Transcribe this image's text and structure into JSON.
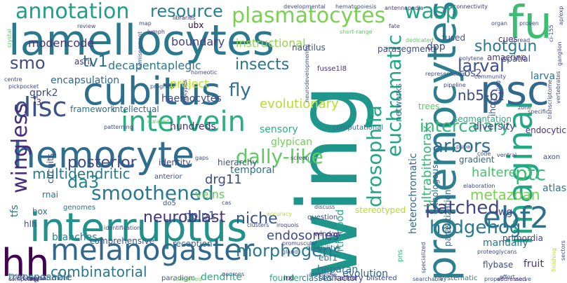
{
  "words": [
    {
      "text": "wing",
      "color": "#1f968b"
    },
    {
      "text": "prohemocytes",
      "color": "#2c7f8e"
    },
    {
      "text": "lamellocytes",
      "color": "#2a788e"
    },
    {
      "text": "interruptus",
      "color": "#21918c"
    },
    {
      "text": "hemocyte",
      "color": "#2f6c8e"
    },
    {
      "text": "cubitus",
      "color": "#2d708e"
    },
    {
      "text": "imaginal",
      "color": "#22a884"
    },
    {
      "text": "fu",
      "color": "#3fbc73"
    },
    {
      "text": "psc",
      "color": "#31688e"
    },
    {
      "text": "hh",
      "color": "#440154"
    },
    {
      "text": "melanogaster",
      "color": "#31688e"
    },
    {
      "text": "ebf2",
      "color": "#2d708e"
    },
    {
      "text": "intervein",
      "color": "#29af7f"
    },
    {
      "text": "disc",
      "color": "#3b528b"
    },
    {
      "text": "plasmatocytes",
      "color": "#7ad151"
    },
    {
      "text": "annotation",
      "color": "#1f9e89"
    },
    {
      "text": "resource",
      "color": "#26828e"
    },
    {
      "text": "wasp",
      "color": "#22a884"
    },
    {
      "text": "smo",
      "color": "#3e4989"
    },
    {
      "text": "fly",
      "color": "#2c728e"
    },
    {
      "text": "insects",
      "color": "#2c728e"
    },
    {
      "text": "tv1",
      "color": "#2d708e"
    },
    {
      "text": "smoothened",
      "color": "#2a788e"
    },
    {
      "text": "dally-like",
      "color": "#5ec962"
    },
    {
      "text": "posterior",
      "color": "#3e4989"
    },
    {
      "text": "da3",
      "color": "#26828e"
    },
    {
      "text": "wingless",
      "color": "#472d7b"
    },
    {
      "text": "multidendritic",
      "color": "#2a788e"
    },
    {
      "text": "drosophila",
      "color": "#22a884"
    },
    {
      "text": "euchromatic",
      "color": "#20a486"
    },
    {
      "text": "arbors",
      "color": "#2e6e8e"
    },
    {
      "text": "intercalary",
      "color": "#35b779"
    },
    {
      "text": "ptc",
      "color": "#3fbc73"
    },
    {
      "text": "patched",
      "color": "#414487"
    },
    {
      "text": "hedgehog",
      "color": "#2a788e"
    },
    {
      "text": "neuroblast",
      "color": "#46327e"
    },
    {
      "text": "morphogens",
      "color": "#2a788e"
    },
    {
      "text": "niche",
      "color": "#3b528b"
    },
    {
      "text": "combinatorial",
      "color": "#2a788e"
    },
    {
      "text": "shotgun",
      "color": "#2a788e"
    },
    {
      "text": "larval",
      "color": "#3b528b"
    },
    {
      "text": "nb5-6t",
      "color": "#3e4989"
    },
    {
      "text": "metazoan",
      "color": "#7ad151"
    },
    {
      "text": "ultrabithorax",
      "color": "#35b779"
    },
    {
      "text": "endosomes",
      "color": "#3e4989"
    },
    {
      "text": "haltere",
      "color": "#4ac16d"
    },
    {
      "text": "boundary",
      "color": "#414487"
    },
    {
      "text": "modencode",
      "color": "#46337f"
    },
    {
      "text": "decapentaplegic",
      "color": "#2a788e"
    },
    {
      "text": "encapsulation",
      "color": "#31688e"
    },
    {
      "text": "instructional",
      "color": "#90d743"
    },
    {
      "text": "evolutionary",
      "color": "#b5de2b"
    },
    {
      "text": "haemocytes",
      "color": "#3e4989"
    },
    {
      "text": "hundreds",
      "color": "#46327e"
    },
    {
      "text": "intellectual",
      "color": "#31688e"
    },
    {
      "text": "framework",
      "color": "#2c728e"
    },
    {
      "text": "project",
      "color": "#b5de2b"
    },
    {
      "text": "sensory",
      "color": "#29af7f"
    },
    {
      "text": "drg11",
      "color": "#3e4989"
    },
    {
      "text": "glypican",
      "color": "#6ece58"
    },
    {
      "text": "heterochromatic",
      "color": "#31688e"
    },
    {
      "text": "veins",
      "color": "#5ec962"
    },
    {
      "text": "temporal",
      "color": "#2c728e"
    },
    {
      "text": "nplp1",
      "color": "#3b528b"
    },
    {
      "text": "transposable",
      "color": "#2a788e"
    },
    {
      "text": "branches",
      "color": "#26828e"
    },
    {
      "text": "comprehensive",
      "color": "#3b528b"
    },
    {
      "text": "reception",
      "color": "#31688e"
    },
    {
      "text": "dendrite",
      "color": "#29af7f"
    },
    {
      "text": "heparan",
      "color": "#2c728e"
    },
    {
      "text": "evolution",
      "color": "#31688e"
    },
    {
      "text": "manually",
      "color": "#2c728e"
    },
    {
      "text": "primordia",
      "color": "#3e4989"
    },
    {
      "text": "diversity",
      "color": "#3e4989"
    },
    {
      "text": "wg",
      "color": "#414487"
    },
    {
      "text": "atlas",
      "color": "#2a788e"
    },
    {
      "text": "ebf1",
      "color": "#2a788e"
    },
    {
      "text": "l4olfactory",
      "color": "#3e4989"
    },
    {
      "text": "founder",
      "color": "#29af7f"
    },
    {
      "text": "arthropod",
      "color": "#20a486"
    },
    {
      "text": "parasitization",
      "color": "#31688e"
    },
    {
      "text": "orthologous",
      "color": "#2c728e"
    },
    {
      "text": "gprk2",
      "color": "#3e4989"
    },
    {
      "text": "asrij",
      "color": "#46327e"
    },
    {
      "text": "ubx",
      "color": "#440154"
    },
    {
      "text": "amacrine",
      "color": "#46327e"
    },
    {
      "text": "cues",
      "color": "#46327e"
    },
    {
      "text": "nautilus",
      "color": "#3b528b"
    },
    {
      "text": "cos2",
      "color": "#3e4989"
    },
    {
      "text": "dpp",
      "color": "#3e4989"
    },
    {
      "text": "spatial",
      "color": "#3e4989"
    },
    {
      "text": "larva",
      "color": "#2c728e"
    },
    {
      "text": "ihog",
      "color": "#3b528b"
    },
    {
      "text": "segmentation",
      "color": "#29af7f"
    },
    {
      "text": "endocytic",
      "color": "#46327e"
    },
    {
      "text": "gradient",
      "color": "#31688e"
    },
    {
      "text": "trees",
      "color": "#5ec962"
    },
    {
      "text": "fused",
      "color": "#3b528b"
    },
    {
      "text": "parasegment",
      "color": "#3e4989"
    },
    {
      "text": "networks",
      "color": "#2c728e"
    },
    {
      "text": "computational",
      "color": "#2c728e"
    },
    {
      "text": "identity",
      "color": "#3e4989"
    },
    {
      "text": "hierarchy",
      "color": "#3b528b"
    },
    {
      "text": "classes",
      "color": "#2c728e"
    },
    {
      "text": "stereotyped",
      "color": "#b5de2b"
    },
    {
      "text": "question",
      "color": "#3e4989"
    },
    {
      "text": "disability",
      "color": "#2c728e"
    },
    {
      "text": "pns",
      "color": "#35b779"
    },
    {
      "text": "circuits",
      "color": "#3e4989"
    },
    {
      "text": "fruit",
      "color": "#46327e"
    },
    {
      "text": "flybase",
      "color": "#3e4989"
    },
    {
      "text": "fusse1l8",
      "color": "#46327e"
    },
    {
      "text": "l3",
      "color": "#46327e"
    },
    {
      "text": "tfs",
      "color": "#2c728e"
    },
    {
      "text": "hox",
      "color": "#2c728e"
    },
    {
      "text": "rnai",
      "color": "#2c728e"
    },
    {
      "text": "hlh",
      "color": "#3b528b"
    },
    {
      "text": "genomes",
      "color": "#2c728e"
    },
    {
      "text": "do5",
      "color": "#3b528b"
    },
    {
      "text": "anterior",
      "color": "#3b528b"
    },
    {
      "text": "window",
      "color": "#46327e"
    },
    {
      "text": "irxl",
      "color": "#440154"
    },
    {
      "text": "called",
      "color": "#46327e"
    },
    {
      "text": "blistered",
      "color": "#3e4989"
    },
    {
      "text": "compartment",
      "color": "#31688e"
    },
    {
      "text": "paradigm",
      "color": "#3b528b"
    },
    {
      "text": "conserved",
      "color": "#6ece58"
    },
    {
      "text": "searchable",
      "color": "#3b528b"
    },
    {
      "text": "proper",
      "color": "#3b528b"
    },
    {
      "text": "systematic",
      "color": "#2a788e"
    },
    {
      "text": "nerve",
      "color": "#3b528b"
    },
    {
      "text": "effort",
      "color": "#3b528b"
    },
    {
      "text": "addressed",
      "color": "#46327e"
    },
    {
      "text": "developmental",
      "color": "#3e4989"
    },
    {
      "text": "hematopoiesis",
      "color": "#3b528b"
    },
    {
      "text": "antennapedia",
      "color": "#46327e"
    },
    {
      "text": "neurodevelopmental",
      "color": "#3b528b"
    },
    {
      "text": "short-range",
      "color": "#5ec962"
    },
    {
      "text": "fate",
      "color": "#3e4989"
    },
    {
      "text": "dedicated",
      "color": "#5ec962"
    },
    {
      "text": "connectivity",
      "color": "#46327e"
    },
    {
      "text": "spread",
      "color": "#3b528b"
    },
    {
      "text": "community",
      "color": "#3e4989"
    },
    {
      "text": "polytene",
      "color": "#3e4989"
    },
    {
      "text": "lymph",
      "color": "#46327e"
    },
    {
      "text": "review",
      "color": "#3e4989"
    },
    {
      "text": "libraries",
      "color": "#46327e"
    },
    {
      "text": "crystal",
      "color": "#5ec962"
    },
    {
      "text": "centre",
      "color": "#3e4989"
    },
    {
      "text": "pickpocket",
      "color": "#3e4989"
    },
    {
      "text": "curated",
      "color": "#5ec962"
    },
    {
      "text": "hemisegment",
      "color": "#3b528b"
    },
    {
      "text": "homeotic",
      "color": "#3e4989"
    },
    {
      "text": "neuron",
      "color": "#46327e"
    },
    {
      "text": "competing",
      "color": "#46327e"
    },
    {
      "text": "hspg",
      "color": "#3e4989"
    },
    {
      "text": "set",
      "color": "#46327e"
    },
    {
      "text": "assembly",
      "color": "#3e4989"
    },
    {
      "text": "gland",
      "color": "#3e4989"
    },
    {
      "text": "promuscular",
      "color": "#3e4989"
    },
    {
      "text": "clusters",
      "color": "#3e4989"
    },
    {
      "text": "iroquois",
      "color": "#3e4989"
    },
    {
      "text": "accuracy",
      "color": "#b5de2b"
    },
    {
      "text": "identification",
      "color": "#3e4989"
    },
    {
      "text": "specialized",
      "color": "#3e4989"
    },
    {
      "text": "vertebrates",
      "color": "#3e4989"
    },
    {
      "text": "elaboration",
      "color": "#3e4989"
    },
    {
      "text": "pupal",
      "color": "#3e4989"
    },
    {
      "text": "code",
      "color": "#3e4989"
    },
    {
      "text": "ventral",
      "color": "#3e4989"
    },
    {
      "text": "axon",
      "color": "#3e4989"
    },
    {
      "text": "proteoglycans",
      "color": "#3e4989"
    },
    {
      "text": "sectors",
      "color": "#3e4989"
    },
    {
      "text": "finishing",
      "color": "#b5de2b"
    },
    {
      "text": "organ",
      "color": "#3e4989"
    },
    {
      "text": "proven",
      "color": "#3e4989"
    },
    {
      "text": "ci-155",
      "color": "#3e4989"
    },
    {
      "text": "ap/exp",
      "color": "#3e4989"
    },
    {
      "text": "ganglion",
      "color": "#3e4989"
    },
    {
      "text": "map",
      "color": "#3e4989"
    },
    {
      "text": "pipeline",
      "color": "#3e4989"
    },
    {
      "text": "representative",
      "color": "#3e4989"
    },
    {
      "text": "transcriptome",
      "color": "#3e4989"
    },
    {
      "text": "screen",
      "color": "#3e4989"
    },
    {
      "text": "gaps",
      "color": "#3e4989"
    },
    {
      "text": "subtypes",
      "color": "#3e4989"
    },
    {
      "text": "patterning",
      "color": "#3e4989"
    },
    {
      "text": "discuss",
      "color": "#3e4989"
    },
    {
      "text": "cas",
      "color": "#3e4989"
    },
    {
      "text": "zone",
      "color": "#3e4989"
    },
    {
      "text": "specific",
      "color": "#3e4989"
    },
    {
      "text": "neg",
      "color": "#3e4989"
    },
    {
      "text": "progress",
      "color": "#3e4989"
    },
    {
      "text": "neurons",
      "color": "#3e4989"
    }
  ]
}
